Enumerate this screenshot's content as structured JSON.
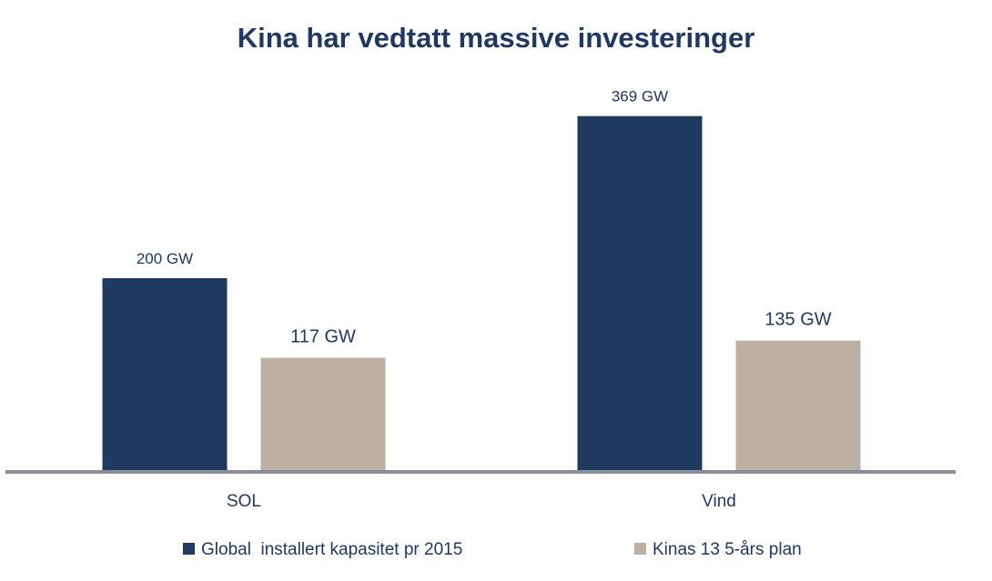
{
  "chart_data": {
    "type": "bar",
    "title": "Kina har vedtatt massive investeringer",
    "categories": [
      "SOL",
      "Vind"
    ],
    "series": [
      {
        "name": "Global  installert kapasitet pr 2015",
        "values": [
          200,
          369
        ],
        "labels": [
          "200 GW",
          "369 GW"
        ],
        "color": "#1f3a5f"
      },
      {
        "name": "Kinas 13 5-års plan",
        "values": [
          117,
          135
        ],
        "labels": [
          "117 GW",
          "135 GW"
        ],
        "color": "#bcb0a4"
      }
    ],
    "unit": "GW",
    "xlabel": "",
    "ylabel": "",
    "ylim": [
      0,
      400
    ],
    "grid": false,
    "legend_position": "bottom"
  }
}
